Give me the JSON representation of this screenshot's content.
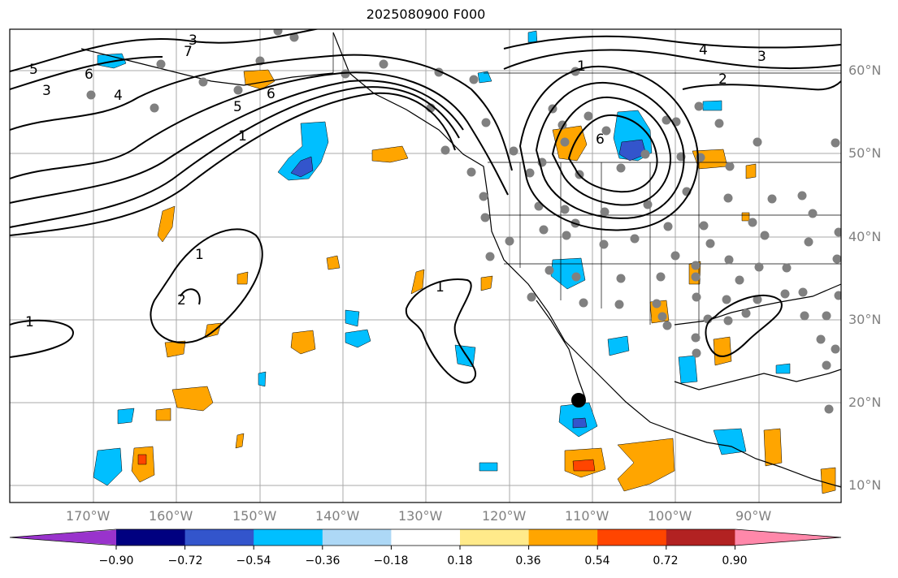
{
  "title": "2025080900 F000",
  "longitude_labels": [
    "170°W",
    "160°W",
    "150°W",
    "140°W",
    "130°W",
    "120°W",
    "110°W",
    "100°W",
    "90°W"
  ],
  "latitude_labels": [
    "60°N",
    "50°N",
    "40°N",
    "30°N",
    "20°N",
    "10°N"
  ],
  "contour_labels": [
    "1",
    "1",
    "1",
    "1",
    "1",
    "2",
    "2",
    "3",
    "3",
    "3",
    "4",
    "4",
    "5",
    "5",
    "6",
    "6",
    "6",
    "7"
  ],
  "colorbar": {
    "tick_labels": [
      "−0.90",
      "−0.72",
      "−0.54",
      "−0.36",
      "−0.18",
      "0.18",
      "0.36",
      "0.54",
      "0.72",
      "0.90"
    ],
    "colors": [
      "#9933cc",
      "#000080",
      "#3355cc",
      "#00bfff",
      "#add8f6",
      "#ffffff",
      "#ffea8a",
      "#ffa500",
      "#ff4500",
      "#b22222",
      "#ff88aa"
    ]
  }
}
